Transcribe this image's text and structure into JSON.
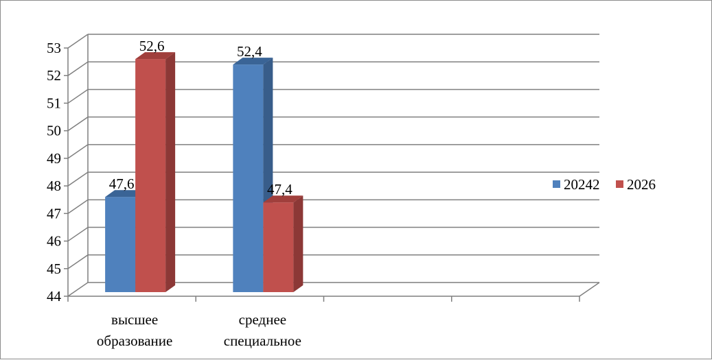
{
  "chart_data": {
    "type": "bar",
    "three_d": true,
    "categories": [
      [
        "высшее",
        "образование"
      ],
      [
        "среднее",
        "специальное"
      ],
      [
        "",
        ""
      ],
      [
        "",
        ""
      ]
    ],
    "series": [
      {
        "name": "20242",
        "values": [
          47.6,
          52.4,
          null,
          null
        ],
        "labels": [
          "47,6",
          "52,4",
          "",
          ""
        ],
        "color": "#4f81bd",
        "side": "#385d8a",
        "top": "#3a6496"
      },
      {
        "name": "2026",
        "values": [
          52.6,
          47.4,
          null,
          null
        ],
        "labels": [
          "52,6",
          "47,4",
          "",
          ""
        ],
        "color": "#c0504d",
        "side": "#8c3836",
        "top": "#a03f3c"
      }
    ],
    "ylim": [
      44,
      53
    ],
    "y_ticks": [
      44,
      45,
      46,
      47,
      48,
      49,
      50,
      51,
      52,
      53
    ],
    "grid": true,
    "legend_position": "right",
    "title": "",
    "xlabel": "",
    "ylabel": ""
  }
}
